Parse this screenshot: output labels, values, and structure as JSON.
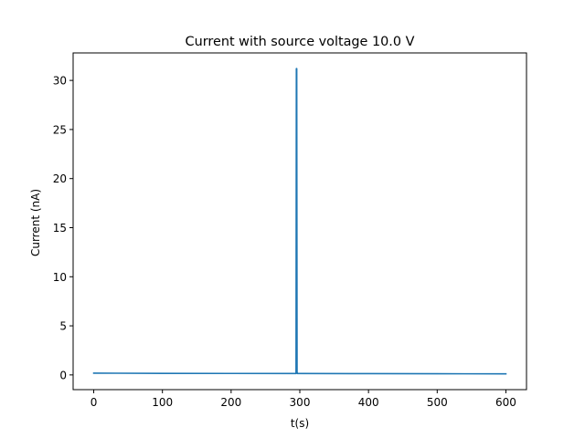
{
  "chart_data": {
    "type": "line",
    "title": "Current with source voltage 10.0 V",
    "xlabel": "t(s)",
    "ylabel": "Current (nA)",
    "xlim": [
      -30,
      630
    ],
    "ylim": [
      -1.5,
      32.8
    ],
    "xticks": [
      0,
      100,
      200,
      300,
      400,
      500,
      600
    ],
    "yticks": [
      0,
      5,
      10,
      15,
      20,
      25,
      30
    ],
    "grid": false,
    "series": [
      {
        "color": "#1f77b4",
        "x": [
          0,
          100,
          200,
          290,
          294.5,
          295,
          295.5,
          296,
          296.5,
          300,
          400,
          500,
          600
        ],
        "y": [
          0.18,
          0.16,
          0.15,
          0.14,
          0.14,
          31.2,
          31.2,
          0.3,
          0.14,
          0.14,
          0.13,
          0.12,
          0.11
        ]
      }
    ]
  }
}
